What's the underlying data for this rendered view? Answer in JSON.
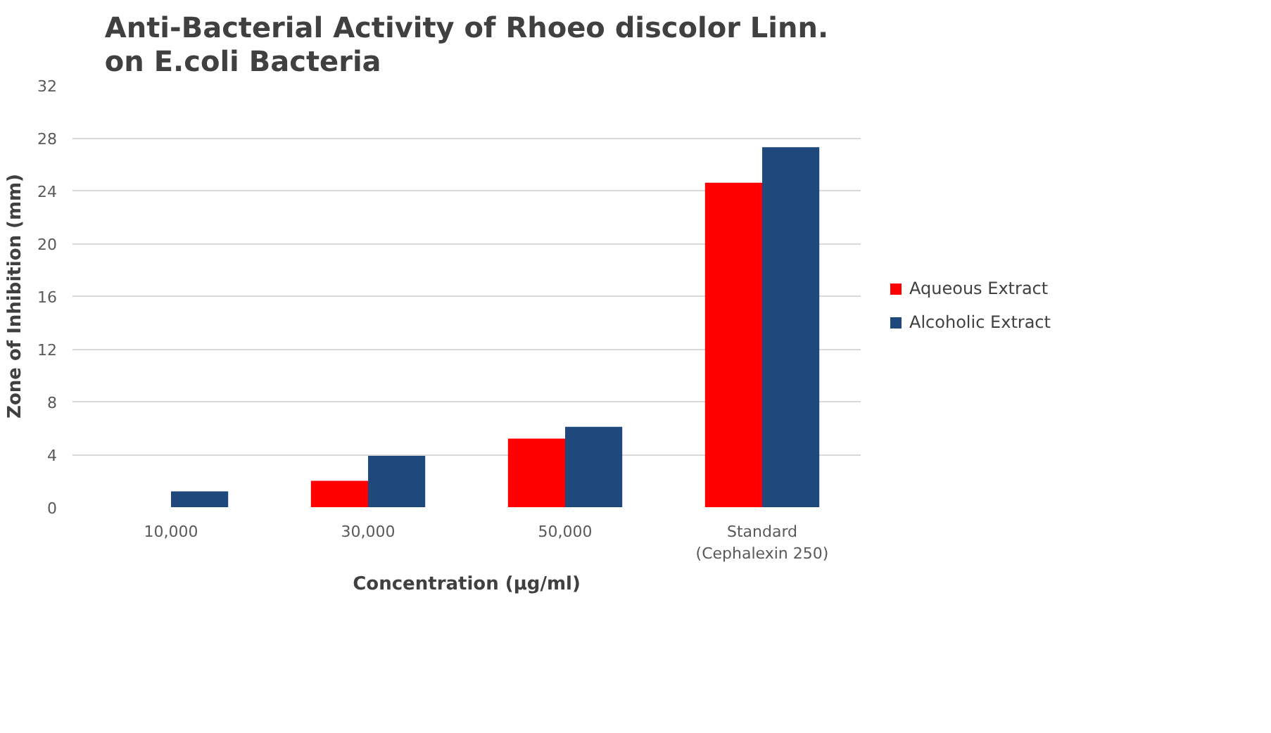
{
  "chart_data": {
    "type": "bar",
    "title": "Anti-Bacterial Activity of Rhoeo discolor Linn.\non E.coli Bacteria",
    "xlabel": "Concentration (µg/ml)",
    "ylabel": "Zone of Inhibition (mm)",
    "categories": [
      "10,000",
      "30,000",
      "50,000",
      "Standard\n(Cephalexin 250)"
    ],
    "series": [
      {
        "name": "Aqueous Extract",
        "color": "#ff0000",
        "values": [
          0,
          2.0,
          5.2,
          24.6
        ]
      },
      {
        "name": "Alcoholic Extract",
        "color": "#1f497d",
        "values": [
          1.2,
          3.9,
          6.1,
          27.3
        ]
      }
    ],
    "ylim": [
      0,
      32
    ],
    "yticks": [
      0,
      4,
      8,
      12,
      16,
      20,
      24,
      28,
      32
    ],
    "grid": "y",
    "legend": "right"
  }
}
